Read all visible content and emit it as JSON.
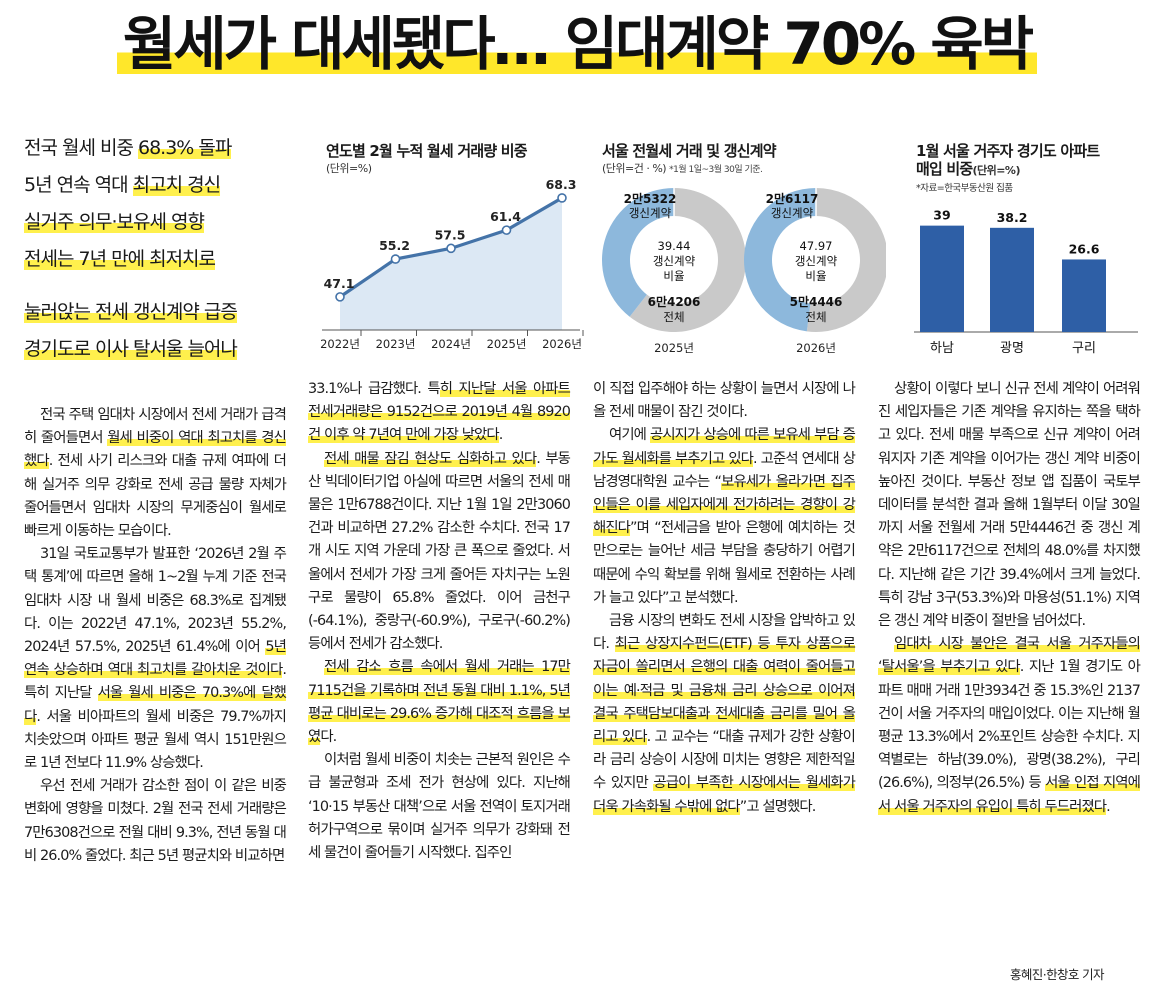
{
  "headline": "월세가 대세됐다… 임대계약 70% 육박",
  "subheads": [
    [
      {
        "t": "전국 월세 비중 "
      },
      {
        "t": "68.3% 돌파",
        "hl": true
      }
    ],
    [
      {
        "t": "5년 연속 역대 "
      },
      {
        "t": "최고치 경신",
        "hl": true
      }
    ],
    [
      {
        "t": "실거주 의무·보유세 영향",
        "hl": true
      }
    ],
    [
      {
        "t": "전세는 7년 만에 최저치로",
        "hl": true
      }
    ],
    [
      {
        "t": "눌러앉는 전세 갱신계약 급증",
        "hl": true
      }
    ],
    [
      {
        "t": "경기도로 이사 탈서울 늘어나",
        "hl": true
      }
    ]
  ],
  "chart1": {
    "title": "연도별 2월 누적 월세 거래량 비중",
    "unit": "(단위=%)",
    "chart_data": {
      "type": "area",
      "categories": [
        "2022년",
        "2023년",
        "2024년",
        "2025년",
        "2026년"
      ],
      "values": [
        47.1,
        55.2,
        57.5,
        61.4,
        68.3
      ],
      "labels": [
        "47.1",
        "55.2",
        "57.5",
        "61.4",
        "68.3"
      ]
    }
  },
  "chart2": {
    "title": "서울 전월세 거래 및 갱신계약",
    "unit": "(단위=건 · %)",
    "note": "*1월 1일~3월 30일 기준.",
    "chart_data": {
      "type": "pie",
      "pies": [
        {
          "year": "2025년",
          "renewal_share": 39.44,
          "renewal_count": "2만5322",
          "renewal_label": "갱신계약",
          "total_count": "6만4206",
          "total_label": "전체",
          "center_value": "39.44",
          "center_label1": "갱신계약",
          "center_label2": "비율"
        },
        {
          "year": "2026년",
          "renewal_share": 47.97,
          "renewal_count": "2만6117",
          "renewal_label": "갱신계약",
          "total_count": "5만4446",
          "total_label": "전체",
          "center_value": "47.97",
          "center_label1": "갱신계약",
          "center_label2": "비율"
        }
      ],
      "colors": {
        "renewal": "#8db8dc",
        "rest": "#c9c9c9"
      }
    }
  },
  "chart3": {
    "title1": "1월 서울 거주자 경기도 아파트",
    "title2": "매입 비중",
    "unit": "(단위=%)",
    "source": "*자료=한국부동산원 집품",
    "chart_data": {
      "type": "bar",
      "categories": [
        "하남",
        "광명",
        "구리"
      ],
      "values": [
        39,
        38.2,
        26.6
      ],
      "labels": [
        "39",
        "38.2",
        "26.6"
      ],
      "color": "#2e5fa6"
    }
  },
  "columns": [
    [
      {
        "indent": true,
        "spans": [
          {
            "t": "전국 주택 임대차 시장에서 전세 거래가 급격히 줄어들면서 "
          },
          {
            "t": "월세 비중이 역대 최고치를 경신했다",
            "hl": true
          },
          {
            "t": ". 전세 사기 리스크와 대출 규제 여파에 더해 실거주 의무 강화로 전세 공급 물량 자체가 줄어들면서 임대차 시장의 무게중심이 월세로 빠르게 이동하는 모습이다."
          }
        ]
      },
      {
        "indent": true,
        "spans": [
          {
            "t": "31일 국토교통부가 발표한 ‘2026년 2월 주택 통계’에 따르면 올해 1~2월 누계 기준 전국 임대차 시장 내 월세 비중은 68.3%로 집계됐다. 이는 2022년 47.1%, 2023년 55.2%, 2024년 57.5%, 2025년 61.4%에 이어 "
          },
          {
            "t": "5년 연속 상승하며 역대 최고치를 갈아치운 것이다",
            "hl": true
          },
          {
            "t": ". 특히 지난달 "
          },
          {
            "t": "서울 월세 비중은 70.3%에 달했다",
            "hl": true
          },
          {
            "t": ". 서울 비아파트의 월세 비중은 79.7%까지 치솟았으며 아파트 평균 월세 역시 151만원으로 1년 전보다 11.9% 상승했다."
          }
        ]
      },
      {
        "indent": true,
        "spans": [
          {
            "t": "우선 전세 거래가 감소한 점이 이 같은 비중 변화에 영향을 미쳤다. 2월 전국 전세 거래량은 7만6308건으로 전월 대비 9.3%, 전년 동월 대비 26.0% 줄었다. 최근 5년 평균치와 비교하면"
          }
        ]
      }
    ],
    [
      {
        "indent": false,
        "spans": [
          {
            "t": "33.1%나 급감했다. 특"
          },
          {
            "t": "히 지난달 서울 아파트 전세거래량은 9152건으로 2019년 4월 8920건 이후 약 7년여 만에 가장 낮았다",
            "hl": true
          },
          {
            "t": "."
          }
        ]
      },
      {
        "indent": true,
        "spans": [
          {
            "t": "전세 매물 잠김 현상도 심화하고 있다",
            "hl": true
          },
          {
            "t": ". 부동산 빅데이터기업 아실에 따르면 서울의 전세 매물은 1만6788건이다. 지난 1월 1일 2만3060건과 비교하면 27.2% 감소한 수치다. 전국 17개 시도 지역 가운데 가장 큰 폭으로 줄었다. 서울에서 전세가 가장 크게 줄어든 자치구는 노원구로 물량이 65.8% 줄었다. 이어 금천구(-64.1%), 중랑구(-60.9%), 구로구(-60.2%) 등에서 전세가 감소했다."
          }
        ]
      },
      {
        "indent": true,
        "spans": [
          {
            "t": "전세 감소 흐름 속에서 월세 거래는 17만7115건을 기록하며 전년 동월 대비 1.1%, 5년 평균 대비로는 29.6% 증가해 대조적 흐름을 보였",
            "hl": true
          },
          {
            "t": "다."
          }
        ]
      },
      {
        "indent": true,
        "spans": [
          {
            "t": "이처럼 월세 비중이 치솟는 근본적 원인은 수급 불균형과 조세 전가 현상에 있다. 지난해 ‘10·15 부동산 대책’으로 서울 전역이 토지거래허가구역으로 묶이며 실거주 의무가 강화돼 전세 물건이 줄어들기 시작했다. 집주인"
          }
        ]
      }
    ],
    [
      {
        "indent": false,
        "spans": [
          {
            "t": "이 직접 입주해야 하는 상황이 늘면서 시장에 나올 전세 매물이 잠긴 것이다."
          }
        ]
      },
      {
        "indent": true,
        "spans": [
          {
            "t": "여기에 "
          },
          {
            "t": "공시지가 상승에 따른 보유세 부담 증가도 월세화를 부추기고 있다",
            "hl": true
          },
          {
            "t": ". 고준석 연세대 상남경영대학원 교수는 “"
          },
          {
            "t": "보유세가 올라가면 집주인들은 이를 세입자에게 전가하려는 경향이 강해진다",
            "hl": true
          },
          {
            "t": "”며 “전세금을 받아 은행에 예치하는 것만으로는 늘어난 세금 부담을 충당하기 어렵기 때문에 수익 확보를 위해 월세로 전환하는 사례가 늘고 있다”고 분석했다."
          }
        ]
      },
      {
        "indent": true,
        "spans": [
          {
            "t": "금융 시장의 변화도 전세 시장을 압박하고 있다. "
          },
          {
            "t": "최근 상장지수펀드(ETF) 등 투자 상품으로 자금이 쏠리면서 은행의 대출 여력이 줄어들고 이는 예·적금 및 금융채 금리 상승으로 이어져 결국 주택담보대출과 전세대출 금리를 밀어 올리고 있다",
            "hl": true
          },
          {
            "t": ". 고 교수는 “대출 규제가 강한 상황이라 금리 상승이 시장에 미치는 영향은 제한적일 수 있지만 "
          },
          {
            "t": "공급이 부족한 시장에서는 월세화가 더욱 가속화될 수밖에 없다",
            "hl": true
          },
          {
            "t": "”고 설명했다."
          }
        ]
      }
    ],
    [
      {
        "indent": true,
        "spans": [
          {
            "t": "상황이 이렇다 보니 신규 전세 계약이 어려워진 세입자들은 기존 계약을 유지하는 쪽을 택하고 있다. 전세 매물 부족으로 신규 계약이 어려워지자 기존 계약을 이어가는 갱신 계약 비중이 높아진 것이다. 부동산 정보 앱 집품이 국토부 데이터를 분석한 결과 올해 1월부터 이달 30일까지 서울 전월세 거래 5만4446건 중 갱신 계약은 2만6117건으로 전체의 48.0%를 차지했다. 지난해 같은 기간 39.4%에서 크게 늘었다. 특히 강남 3구(53.3%)와 마용성(51.1%) 지역은 갱신 계약 비중이 절반을 넘어섰다."
          }
        ]
      },
      {
        "indent": true,
        "spans": [
          {
            "t": "임대차 시장 불안은 결국 서울 거주자들의 ‘탈서울’을 부추기고 있다",
            "hl": true
          },
          {
            "t": ". 지난 1월 경기도 아파트 매매 거래 1만3934건 중 15.3%인 2137건이 서울 거주자의 매입이었다. 이는 지난해 월평균 13.3%에서 2%포인트 상승한 수치다. 지역별로는 하남(39.0%), 광명(38.2%), 구리(26.6%), 의정부(26.5%) 등 "
          },
          {
            "t": "서울 인접 지역에서 서울 거주자의 유입이 특히 두드러졌다",
            "hl": true
          },
          {
            "t": "."
          }
        ]
      }
    ]
  ],
  "byline": "홍혜진·한창호 기자"
}
